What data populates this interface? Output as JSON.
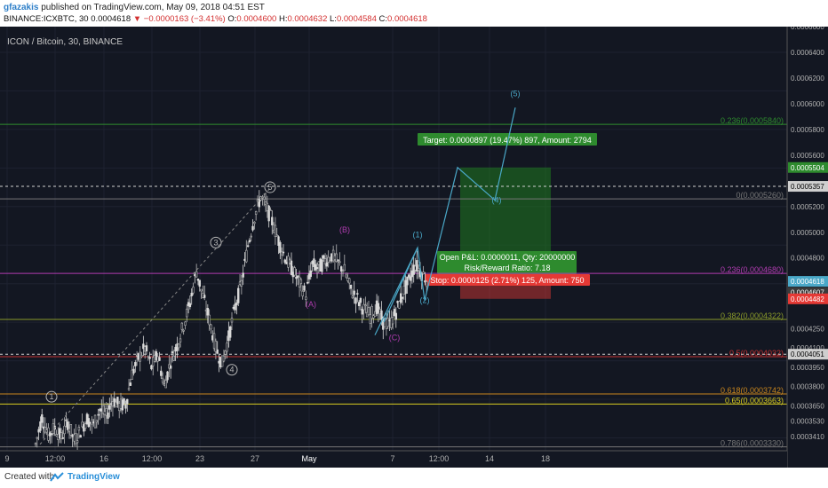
{
  "header": {
    "author": "gfazakis",
    "published": "published on TradingView.com, May 09, 2018 04:51 EST",
    "symbol": "BINANCE:ICXBTC, 30",
    "last": "0.0004618",
    "change": "▼ −0.0000163 (−3.41%)",
    "o_label": "O:",
    "o_value": "0.0004600",
    "h_label": "H:",
    "h_value": "0.0004632",
    "l_label": "L:",
    "l_value": "0.0004584",
    "c_label": "C:",
    "c_value": "0.0004618"
  },
  "footer": {
    "created_with": "Created with",
    "brand": "TradingView"
  },
  "colors": {
    "background": "#131722",
    "up": "#b8b8b8",
    "down": "#d9d9d9",
    "fib_green": "#2e8b2e",
    "fib_gray": "#777777",
    "fib_magenta": "#b03cb0",
    "fib_olive": "#8a9a2a",
    "fib_red": "#c43030",
    "fib_orange": "#c8861e",
    "fib_yellow": "#d8cc20",
    "wave": "#4aa8c8",
    "target_box": "#1f7a1f",
    "stop_box": "#e53935"
  },
  "chart_data": {
    "type": "candlestick",
    "title": "ICON / Bitcoin, 30, BINANCE",
    "y_range": [
      0.00033,
      0.00066
    ],
    "y_ticks": [
      "0.0006600",
      "0.0006400",
      "0.0006200",
      "0.0006000",
      "0.0005800",
      "0.0005600",
      "0.0005504",
      "0.0005357",
      "0.0005200",
      "0.0005000",
      "0.0004800",
      "0.0004618",
      "09:02",
      "0.0004607",
      "0.0004482",
      "0.0004250",
      "0.0004100",
      "0.0004051",
      "0.0003950",
      "0.0003800",
      "0.0003650",
      "0.0003530",
      "0.0003410"
    ],
    "x_ticks": [
      "9",
      "12:00",
      "16",
      "12:00",
      "23",
      "27",
      "May",
      "7",
      "12:00",
      "14",
      "18"
    ],
    "fib_levels": [
      {
        "label": "0.236(0.0005840)",
        "value": 0.000584,
        "color_key": "fib_green"
      },
      {
        "label": "0(0.0005260)",
        "value": 0.000526,
        "color_key": "fib_gray"
      },
      {
        "label": "0.236(0.0004680)",
        "value": 0.000468,
        "color_key": "fib_magenta"
      },
      {
        "label": "0.382(0.0004322)",
        "value": 0.0004322,
        "color_key": "fib_olive"
      },
      {
        "label": "0.5(0.0004032)",
        "value": 0.0004032,
        "color_key": "fib_red"
      },
      {
        "label": "0.618(0.0003742)",
        "value": 0.0003742,
        "color_key": "fib_orange"
      },
      {
        "label": "0.65(0.0003663)",
        "value": 0.0003663,
        "color_key": "fib_yellow"
      },
      {
        "label": "0.786(0.0003330)",
        "value": 0.000333,
        "color_key": "fib_gray"
      }
    ],
    "dashed_levels": [
      0.0005357,
      0.0004051
    ],
    "price_path": [
      0.000335,
      0.000356,
      0.000342,
      0.000348,
      0.00034,
      0.000352,
      0.000338,
      0.000346,
      0.000355,
      0.00035,
      0.000362,
      0.000357,
      0.00037,
      0.000365,
      0.000366,
      0.00039,
      0.000402,
      0.00041,
      0.000395,
      0.000405,
      0.00038,
      0.0004,
      0.000412,
      0.000428,
      0.000445,
      0.00047,
      0.00045,
      0.000432,
      0.00041,
      0.000398,
      0.000418,
      0.000442,
      0.00046,
      0.00049,
      0.000512,
      0.000528,
      0.000518,
      0.000505,
      0.00049,
      0.000478,
      0.00047,
      0.00046,
      0.000452,
      0.000475,
      0.000472,
      0.000478,
      0.000482,
      0.000476,
      0.00047,
      0.000455,
      0.000448,
      0.00044,
      0.000435,
      0.000442,
      0.00043,
      0.000428,
      0.000438,
      0.000452,
      0.000462,
      0.000475,
      0.000468,
      0.000462
    ],
    "elliott_waves": [
      {
        "label": "1",
        "price": 0.000372,
        "color_key": "up"
      },
      {
        "label": "3",
        "price": 0.000492,
        "color_key": "up"
      },
      {
        "label": "4",
        "price": 0.000393,
        "color_key": "up"
      },
      {
        "label": "5",
        "price": 0.000535,
        "color_key": "up"
      },
      {
        "label": "(A)",
        "price": 0.000444,
        "color_key": "fib_magenta"
      },
      {
        "label": "(B)",
        "price": 0.000502,
        "color_key": "fib_magenta"
      },
      {
        "label": "(C)",
        "price": 0.000418,
        "color_key": "fib_magenta"
      },
      {
        "label": "(1)",
        "price": 0.000498,
        "color_key": "wave"
      },
      {
        "label": "(2)",
        "price": 0.000447,
        "color_key": "wave"
      },
      {
        "label": "(4)",
        "price": 0.000525,
        "color_key": "wave"
      },
      {
        "label": "(5)",
        "price": 0.000608,
        "color_key": "wave"
      }
    ],
    "position": {
      "target": "Target: 0.0000897 (19.47%) 897, Amount: 2794",
      "open": "Open P&L: 0.0000011, Qty: 20000000",
      "ratio": "Risk/Reward Ratio: 7.18",
      "stop": "Stop: 0.0000125 (2.71%) 125, Amount: 750",
      "entry_price": 0.0004607,
      "target_price": 0.0005504,
      "stop_price": 0.0004482
    }
  }
}
